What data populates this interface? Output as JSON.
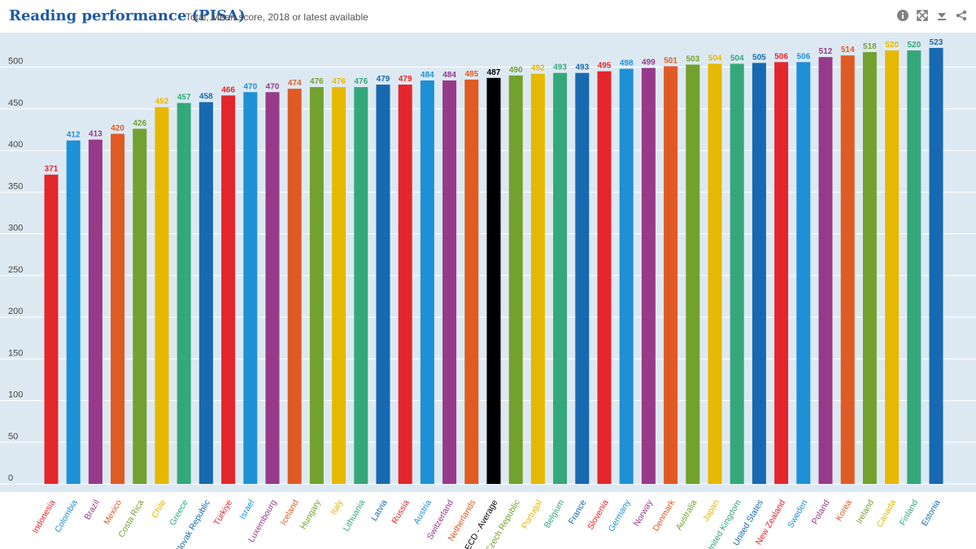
{
  "header": {
    "title": "Reading performance (PISA)",
    "subtitle": "Total, Mean score, 2018 or latest available"
  },
  "toolbar": {
    "icons": [
      "info-icon",
      "expand-icon",
      "download-icon",
      "share-icon"
    ]
  },
  "chart_data": {
    "type": "bar",
    "title": "Reading performance (PISA)",
    "subtitle": "Total, Mean score, 2018 or latest available",
    "xlabel": "",
    "ylabel": "",
    "ylim": [
      0,
      530
    ],
    "yticks": [
      0,
      50,
      100,
      150,
      200,
      250,
      300,
      350,
      400,
      450,
      500
    ],
    "grid": true,
    "legend": "none",
    "categories": [
      "Indonesia",
      "Colombia",
      "Brazil",
      "Mexico",
      "Costa Rica",
      "Chile",
      "Greece",
      "Slovak Republic",
      "Türkiye",
      "Israel",
      "Luxembourg",
      "Iceland",
      "Hungary",
      "Italy",
      "Lithuania",
      "Latvia",
      "Russia",
      "Austria",
      "Switzerland",
      "Netherlands",
      "OECD - Average",
      "Czech Republic",
      "Portugal",
      "Belgium",
      "France",
      "Slovenia",
      "Germany",
      "Norway",
      "Denmark",
      "Australia",
      "Japan",
      "United Kingdom",
      "United States",
      "New Zealand",
      "Sweden",
      "Poland",
      "Korea",
      "Ireland",
      "Canada",
      "Finland",
      "Estonia"
    ],
    "values": [
      371,
      412,
      413,
      420,
      426,
      452,
      457,
      458,
      466,
      470,
      470,
      474,
      476,
      476,
      476,
      479,
      479,
      484,
      484,
      485,
      487,
      490,
      492,
      493,
      493,
      495,
      498,
      499,
      501,
      503,
      504,
      504,
      505,
      506,
      506,
      512,
      514,
      518,
      520,
      520,
      523
    ],
    "colors": [
      "#e3262c",
      "#1e90d6",
      "#983a8a",
      "#e05a24",
      "#73a12d",
      "#e6b800",
      "#34a87a",
      "#1769b1",
      "#e3262c",
      "#1e90d6",
      "#983a8a",
      "#e05a24",
      "#73a12d",
      "#e6b800",
      "#34a87a",
      "#1769b1",
      "#e3262c",
      "#1e90d6",
      "#983a8a",
      "#e05a24",
      "#000000",
      "#73a12d",
      "#e6b800",
      "#34a87a",
      "#1769b1",
      "#e3262c",
      "#1e90d6",
      "#983a8a",
      "#e05a24",
      "#73a12d",
      "#e6b800",
      "#34a87a",
      "#1769b1",
      "#e3262c",
      "#1e90d6",
      "#983a8a",
      "#e05a24",
      "#73a12d",
      "#e6b800",
      "#34a87a",
      "#1769b1"
    ],
    "plot_background": "#dde9f2"
  }
}
